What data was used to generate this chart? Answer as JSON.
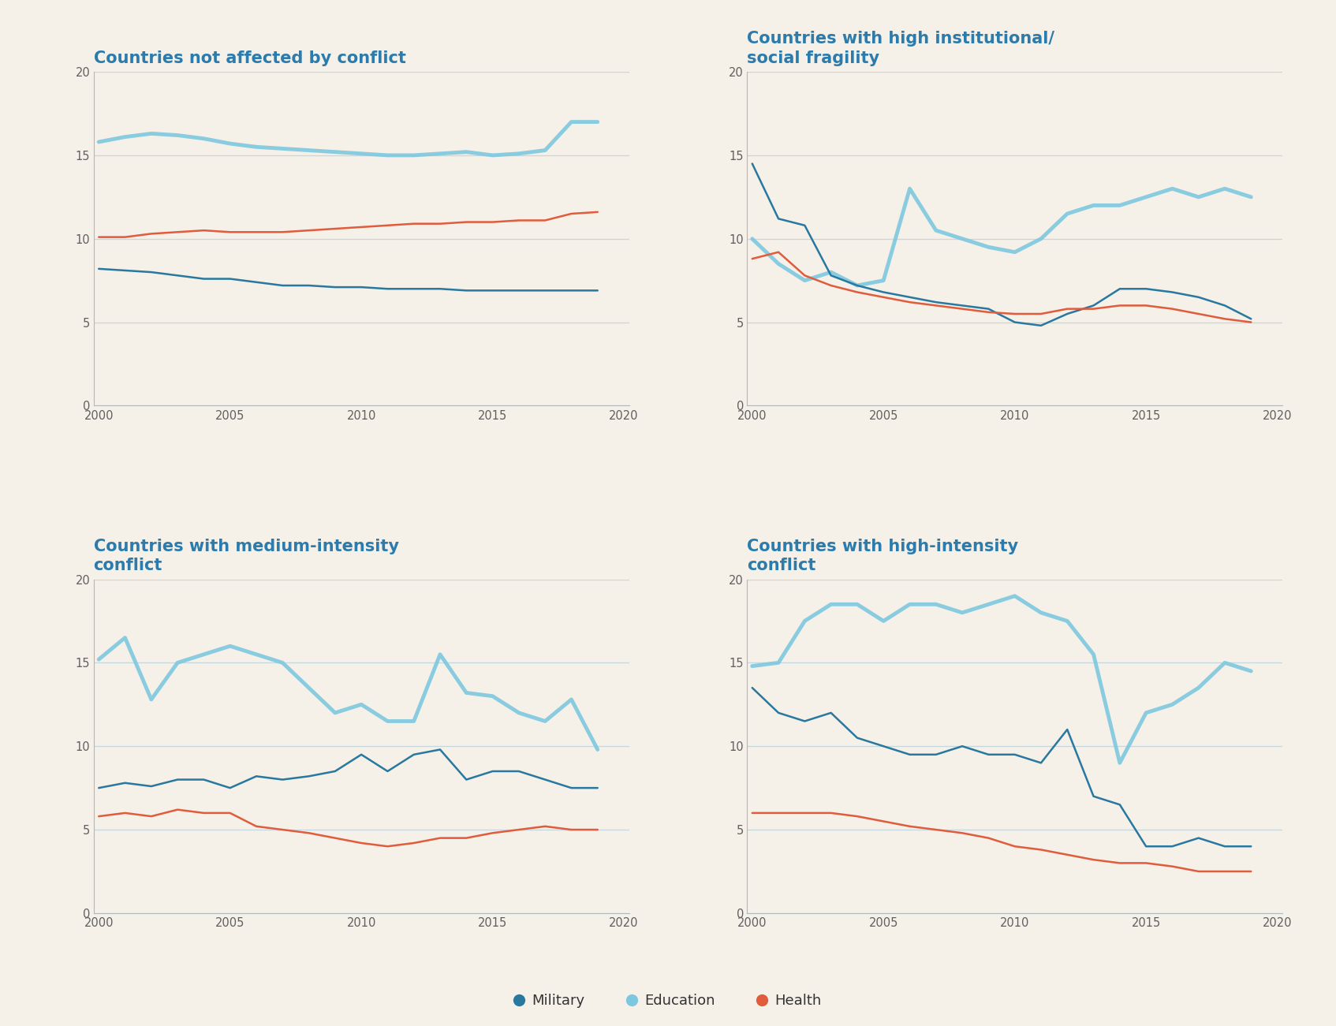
{
  "background_color": "#f5f0e8",
  "title_color": "#2b7bac",
  "title_fontsize": 15,
  "axis_color": "#b0b8bc",
  "grid_color": "#c5d8e0",
  "years": [
    2000,
    2001,
    2002,
    2003,
    2004,
    2005,
    2006,
    2007,
    2008,
    2009,
    2010,
    2011,
    2012,
    2013,
    2014,
    2015,
    2016,
    2017,
    2018,
    2019
  ],
  "panels": [
    {
      "title": "Countries not affected by conflict",
      "military": [
        8.2,
        8.1,
        8.0,
        7.8,
        7.6,
        7.6,
        7.4,
        7.2,
        7.2,
        7.1,
        7.1,
        7.0,
        7.0,
        7.0,
        6.9,
        6.9,
        6.9,
        6.9,
        6.9,
        6.9
      ],
      "education": [
        15.8,
        16.1,
        16.3,
        16.2,
        16.0,
        15.7,
        15.5,
        15.4,
        15.3,
        15.2,
        15.1,
        15.0,
        15.0,
        15.1,
        15.2,
        15.0,
        15.1,
        15.3,
        17.0,
        17.0
      ],
      "health": [
        10.1,
        10.1,
        10.3,
        10.4,
        10.5,
        10.4,
        10.4,
        10.4,
        10.5,
        10.6,
        10.7,
        10.8,
        10.9,
        10.9,
        11.0,
        11.0,
        11.1,
        11.1,
        11.5,
        11.6
      ]
    },
    {
      "title": "Countries with high institutional/\nsocial fragility",
      "military": [
        14.5,
        11.2,
        10.8,
        7.8,
        7.2,
        6.8,
        6.5,
        6.2,
        6.0,
        5.8,
        5.0,
        4.8,
        5.5,
        6.0,
        7.0,
        7.0,
        6.8,
        6.5,
        6.0,
        5.2
      ],
      "education": [
        10.0,
        8.5,
        7.5,
        8.0,
        7.2,
        7.5,
        13.0,
        10.5,
        10.0,
        9.5,
        9.2,
        10.0,
        11.5,
        12.0,
        12.0,
        12.5,
        13.0,
        12.5,
        13.0,
        12.5
      ],
      "health": [
        8.8,
        9.2,
        7.8,
        7.2,
        6.8,
        6.5,
        6.2,
        6.0,
        5.8,
        5.6,
        5.5,
        5.5,
        5.8,
        5.8,
        6.0,
        6.0,
        5.8,
        5.5,
        5.2,
        5.0
      ]
    },
    {
      "title": "Countries with medium-intensity\nconflict",
      "military": [
        7.5,
        7.8,
        7.6,
        8.0,
        8.0,
        7.5,
        8.2,
        8.0,
        8.2,
        8.5,
        9.5,
        8.5,
        9.5,
        9.8,
        8.0,
        8.5,
        8.5,
        8.0,
        7.5,
        7.5
      ],
      "education": [
        15.2,
        16.5,
        12.8,
        15.0,
        15.5,
        16.0,
        15.5,
        15.0,
        13.5,
        12.0,
        12.5,
        11.5,
        11.5,
        15.5,
        13.2,
        13.0,
        12.0,
        11.5,
        12.8,
        9.8
      ],
      "health": [
        5.8,
        6.0,
        5.8,
        6.2,
        6.0,
        6.0,
        5.2,
        5.0,
        4.8,
        4.5,
        4.2,
        4.0,
        4.2,
        4.5,
        4.5,
        4.8,
        5.0,
        5.2,
        5.0,
        5.0
      ]
    },
    {
      "title": "Countries with high-intensity\nconflict",
      "military": [
        13.5,
        12.0,
        11.5,
        12.0,
        10.5,
        10.0,
        9.5,
        9.5,
        10.0,
        9.5,
        9.5,
        9.0,
        11.0,
        7.0,
        6.5,
        4.0,
        4.0,
        4.5,
        4.0,
        4.0
      ],
      "education": [
        14.8,
        15.0,
        17.5,
        18.5,
        18.5,
        17.5,
        18.5,
        18.5,
        18.0,
        18.5,
        19.0,
        18.0,
        17.5,
        15.5,
        9.0,
        12.0,
        12.5,
        13.5,
        15.0,
        14.5
      ],
      "health": [
        6.0,
        6.0,
        6.0,
        6.0,
        5.8,
        5.5,
        5.2,
        5.0,
        4.8,
        4.5,
        4.0,
        3.8,
        3.5,
        3.2,
        3.0,
        3.0,
        2.8,
        2.5,
        2.5,
        2.5
      ]
    }
  ],
  "legend": {
    "military_label": "Military",
    "education_label": "Education",
    "health_label": "Health",
    "military_color": "#2878a0",
    "education_color": "#7dc8e0",
    "health_color": "#e05c3c"
  },
  "ylim": [
    0,
    20
  ],
  "yticks": [
    0,
    5,
    10,
    15,
    20
  ],
  "xticks": [
    2000,
    2005,
    2010,
    2015,
    2020
  ],
  "edu_linewidth": 3.5,
  "mil_linewidth": 1.8,
  "health_linewidth": 1.8
}
